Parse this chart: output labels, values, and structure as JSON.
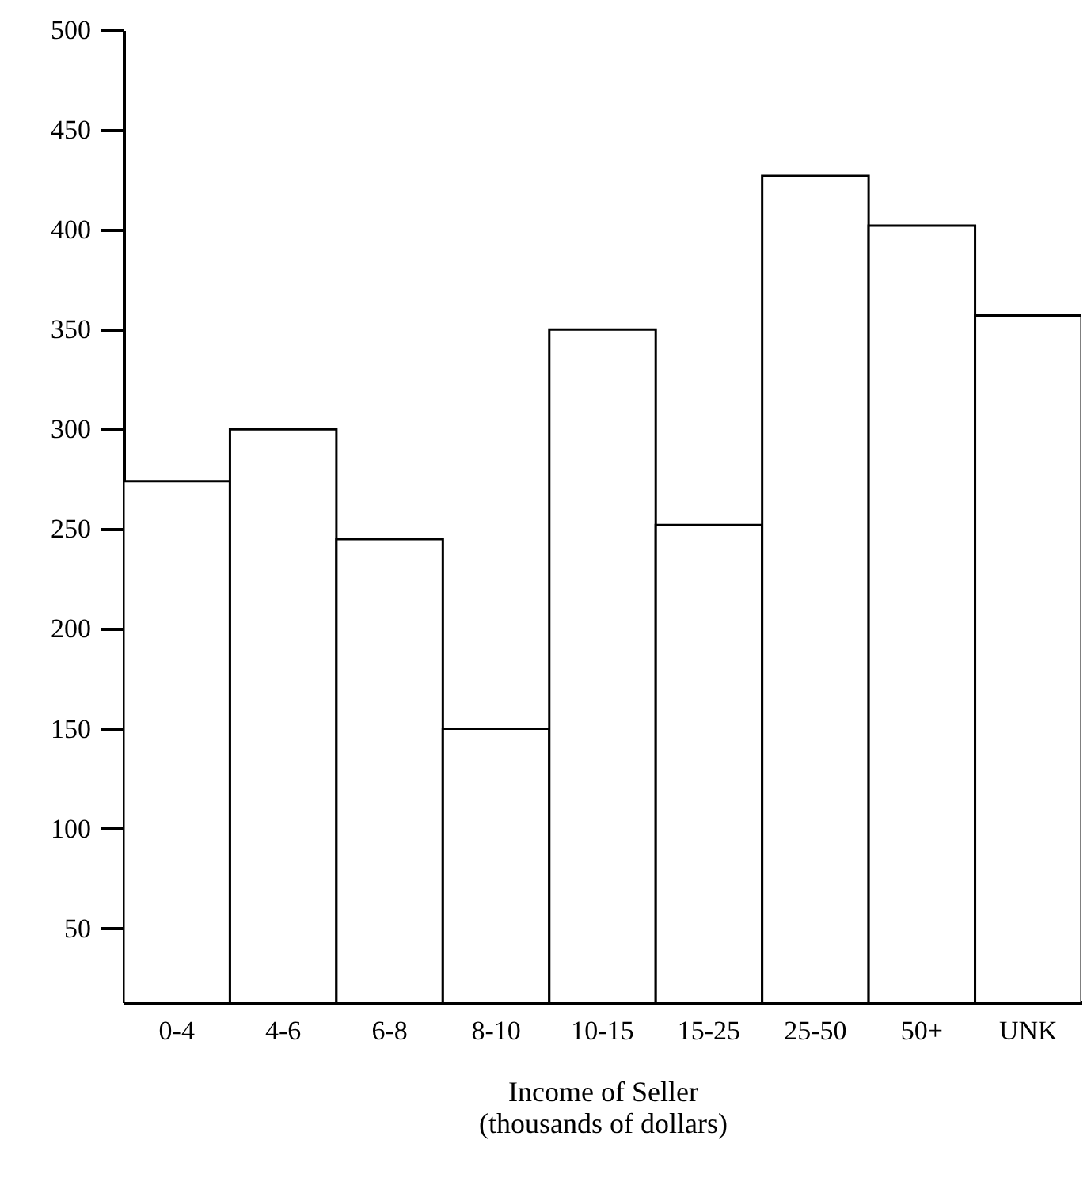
{
  "chart_data": {
    "type": "bar",
    "xlabel": "Income of Seller\n(thousands of dollars)",
    "categories": [
      "0-4",
      "4-6",
      "6-8",
      "8-10",
      "10-15",
      "15-25",
      "25-50",
      "50+",
      "UNK"
    ],
    "values": [
      274,
      300,
      245,
      150,
      350,
      252,
      427,
      402,
      357
    ],
    "color": "#ffffff",
    "ylim": [
      13,
      500
    ],
    "yticks": [
      50,
      100,
      150,
      200,
      250,
      300,
      350,
      400,
      450,
      500
    ],
    "grid": false
  }
}
